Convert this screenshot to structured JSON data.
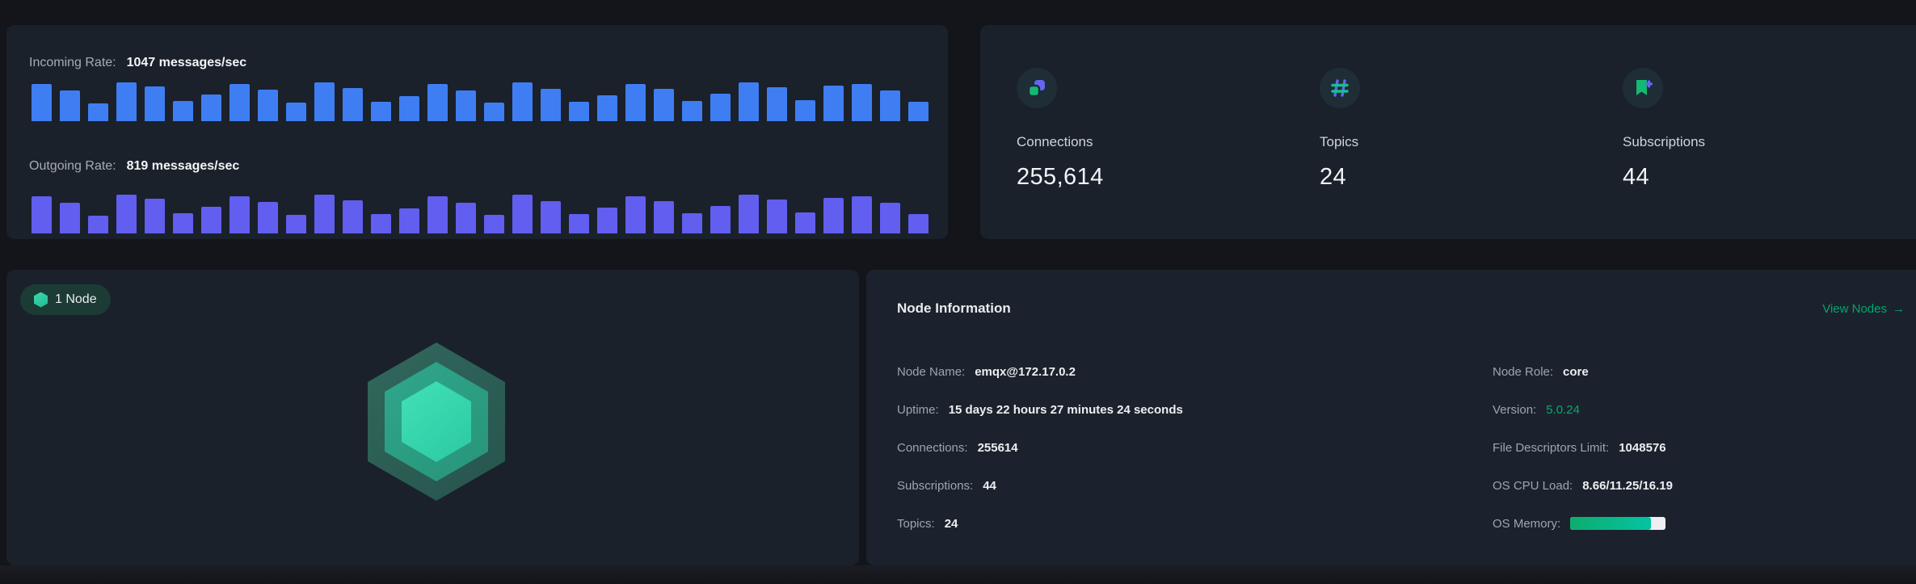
{
  "rates_panel": {
    "incoming": {
      "label": "Incoming Rate:",
      "value": "1047 messages/sec"
    },
    "outgoing": {
      "label": "Outgoing Rate:",
      "value": "819 messages/sec"
    }
  },
  "chart_data": [
    {
      "type": "bar",
      "name": "Incoming Rate",
      "unit": "messages/sec",
      "current_rate": 1047,
      "color": "#3F7EF2",
      "axes": "none (sparkline bars, no axis labels shown)",
      "values": [
        96,
        79,
        46,
        100,
        90,
        52,
        69,
        96,
        81,
        48,
        100,
        85,
        50,
        65,
        96,
        79,
        48,
        100,
        83,
        50,
        67,
        96,
        83,
        52,
        71,
        100,
        88,
        54,
        92,
        96,
        80,
        50
      ],
      "values_note": "relative bar heights in % of tallest bar"
    },
    {
      "type": "bar",
      "name": "Outgoing Rate",
      "unit": "messages/sec",
      "current_rate": 819,
      "color": "#615EF0",
      "axes": "none (sparkline bars, no axis labels shown)",
      "values": [
        96,
        79,
        46,
        100,
        90,
        52,
        69,
        96,
        81,
        48,
        100,
        85,
        50,
        65,
        96,
        79,
        48,
        100,
        83,
        50,
        67,
        96,
        83,
        52,
        71,
        100,
        88,
        54,
        92,
        96,
        80,
        50
      ],
      "values_note": "relative bar heights in % of tallest bar"
    }
  ],
  "metrics_panel": {
    "items": [
      {
        "icon": "connections-icon",
        "label": "Connections",
        "value": "255,614"
      },
      {
        "icon": "topics-hash-icon",
        "label": "Topics",
        "value": "24"
      },
      {
        "icon": "subscriptions-bookmark-icon",
        "label": "Subscriptions",
        "value": "44"
      }
    ]
  },
  "nodes_panel": {
    "badge_label": "1 Node"
  },
  "node_info_panel": {
    "title": "Node Information",
    "view_nodes_label": "View Nodes",
    "view_nodes_arrow": "→",
    "left_rows": [
      {
        "label": "Node Name:",
        "value": "emqx@172.17.0.2"
      },
      {
        "label": "Uptime:",
        "value": "15 days 22 hours 27 minutes 24 seconds"
      },
      {
        "label": "Connections:",
        "value": "255614"
      },
      {
        "label": "Subscriptions:",
        "value": "44"
      },
      {
        "label": "Topics:",
        "value": "24"
      }
    ],
    "right_rows": [
      {
        "label": "Node Role:",
        "value": "core"
      },
      {
        "label": "Version:",
        "value": "5.0.24"
      },
      {
        "label": "File Descriptors Limit:",
        "value": "1048576"
      },
      {
        "label": "OS CPU Load:",
        "value": "8.66/11.25/16.19"
      },
      {
        "label": "OS Memory:",
        "value": "",
        "progress_percent": 85
      }
    ]
  },
  "colors": {
    "accent_green": "#00A76B",
    "incoming_bar": "#3F7EF2",
    "outgoing_bar": "#615EF0",
    "panel_bg": "#1A212B"
  }
}
